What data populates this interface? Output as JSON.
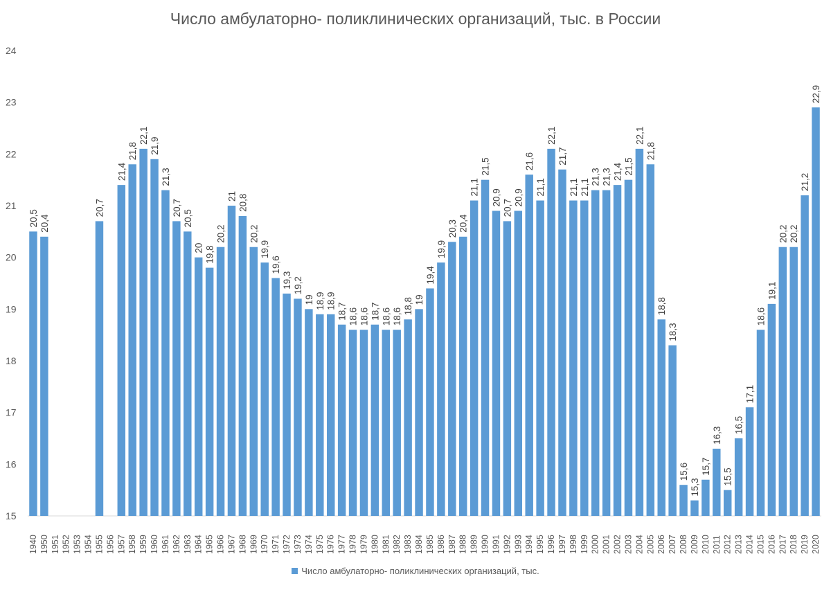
{
  "chart_data": {
    "type": "bar",
    "title": "Число амбулаторно- поликлинических организаций, тыс. в России",
    "xlabel": "",
    "ylabel": "",
    "ylim": [
      15,
      24
    ],
    "yticks": [
      "15",
      "16",
      "17",
      "18",
      "19",
      "20",
      "21",
      "22",
      "23",
      "24"
    ],
    "grid": false,
    "legend_position": "bottom",
    "categories": [
      "1940",
      "1950",
      "1951",
      "1952",
      "1953",
      "1954",
      "1955",
      "1956",
      "1957",
      "1958",
      "1959",
      "1960",
      "1961",
      "1962",
      "1963",
      "1964",
      "1965",
      "1966",
      "1967",
      "1968",
      "1969",
      "1970",
      "1971",
      "1972",
      "1973",
      "1974",
      "1975",
      "1976",
      "1977",
      "1978",
      "1979",
      "1980",
      "1981",
      "1982",
      "1983",
      "1984",
      "1985",
      "1986",
      "1987",
      "1988",
      "1989",
      "1990",
      "1991",
      "1992",
      "1993",
      "1994",
      "1995",
      "1996",
      "1997",
      "1998",
      "1999",
      "2000",
      "2001",
      "2002",
      "2003",
      "2004",
      "2005",
      "2006",
      "2007",
      "2008",
      "2009",
      "2010",
      "2011",
      "2012",
      "2013",
      "2014",
      "2015",
      "2016",
      "2017",
      "2018",
      "2019",
      "2020"
    ],
    "series": [
      {
        "name": "Число амбулаторно- поликлинических организаций, тыс.",
        "color": "#5b9bd5",
        "values": [
          20.5,
          20.4,
          null,
          null,
          null,
          null,
          20.7,
          null,
          21.4,
          21.8,
          22.1,
          21.9,
          21.3,
          20.7,
          20.5,
          20,
          19.8,
          20.2,
          21,
          20.8,
          20.2,
          19.9,
          19.6,
          19.3,
          19.2,
          19,
          18.9,
          18.9,
          18.7,
          18.6,
          18.6,
          18.7,
          18.6,
          18.6,
          18.8,
          19,
          19.4,
          19.9,
          20.3,
          20.4,
          21.1,
          21.5,
          20.9,
          20.7,
          20.9,
          21.6,
          21.1,
          22.1,
          21.7,
          21.1,
          21.1,
          21.3,
          21.3,
          21.4,
          21.5,
          22.1,
          21.8,
          18.8,
          18.3,
          15.6,
          15.3,
          15.7,
          16.3,
          15.5,
          16.5,
          17.1,
          18.6,
          19.1,
          20.2,
          20.2,
          21.2,
          22.9
        ]
      }
    ]
  }
}
